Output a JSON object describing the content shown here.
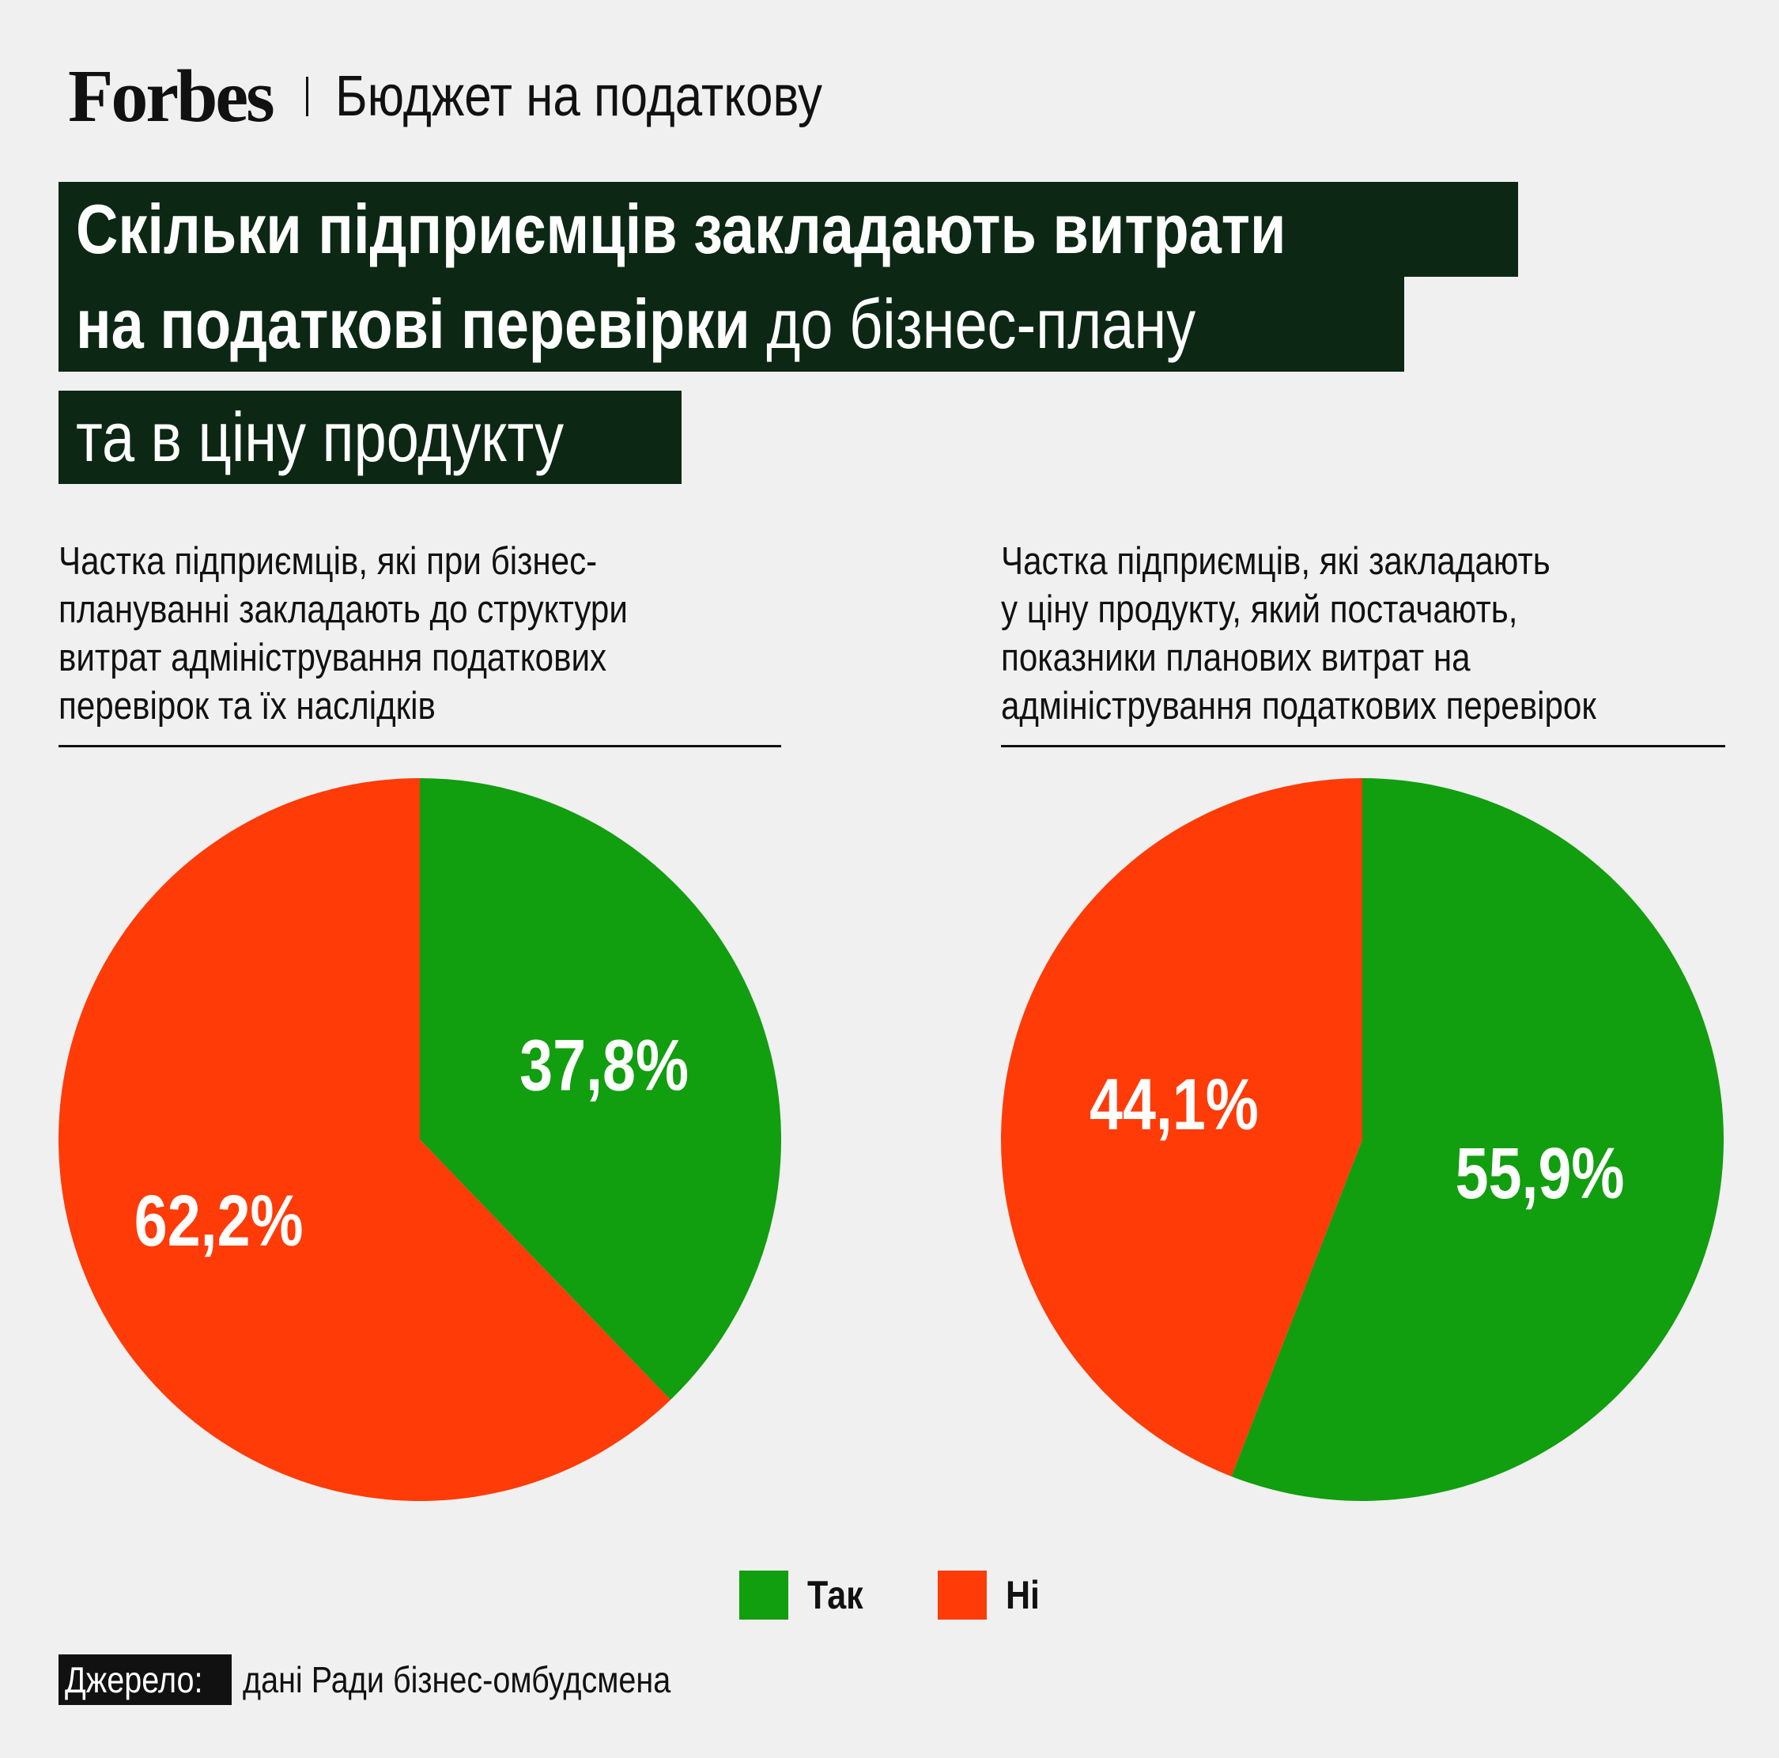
{
  "header": {
    "logo_text": "Forbes",
    "section": "Бюджет на податкову"
  },
  "title": {
    "line1_bold": "Скільки підприємців закладають витрати",
    "line2_bold": "на податкові перевірки",
    "line2_regular": " до бізнес-плану",
    "line3_regular": "та в ціну продукту"
  },
  "legend": [
    {
      "label": "Так",
      "color": "#119e0f"
    },
    {
      "label": "Ні",
      "color": "#ff3b08"
    }
  ],
  "source": {
    "tag": "Джерело:",
    "text": "дані Ради бізнес-омбудсмена"
  },
  "chart_data": [
    {
      "type": "pie",
      "title": "Частка підприємців, які при бізнес-плануванні закладають до структури витрат адміністрування податкових перевірок та їх наслідків",
      "title_lines": [
        "Частка підприємців, які при бізнес-",
        "плануванні закладають до структури",
        "витрат адміністрування податкових",
        "перевірок та їх наслідків"
      ],
      "slices": [
        {
          "label": "Так",
          "value": 37.8,
          "display": "37,8%",
          "color": "#119e0f"
        },
        {
          "label": "Ні",
          "value": 62.2,
          "display": "62,2%",
          "color": "#ff3b08"
        }
      ]
    },
    {
      "type": "pie",
      "title": "Частка підприємців, які закладають у ціну продукту, який постачають, показники планових витрат на адміністрування податкових перевірок",
      "title_lines": [
        "Частка підприємців, які закладають",
        "у ціну продукту, який постачають,",
        "показники планових витрат на",
        "адміністрування податкових перевірок"
      ],
      "slices": [
        {
          "label": "Так",
          "value": 55.9,
          "display": "55,9%",
          "color": "#119e0f"
        },
        {
          "label": "Ні",
          "value": 44.1,
          "display": "44,1%",
          "color": "#ff3b08"
        }
      ]
    }
  ]
}
